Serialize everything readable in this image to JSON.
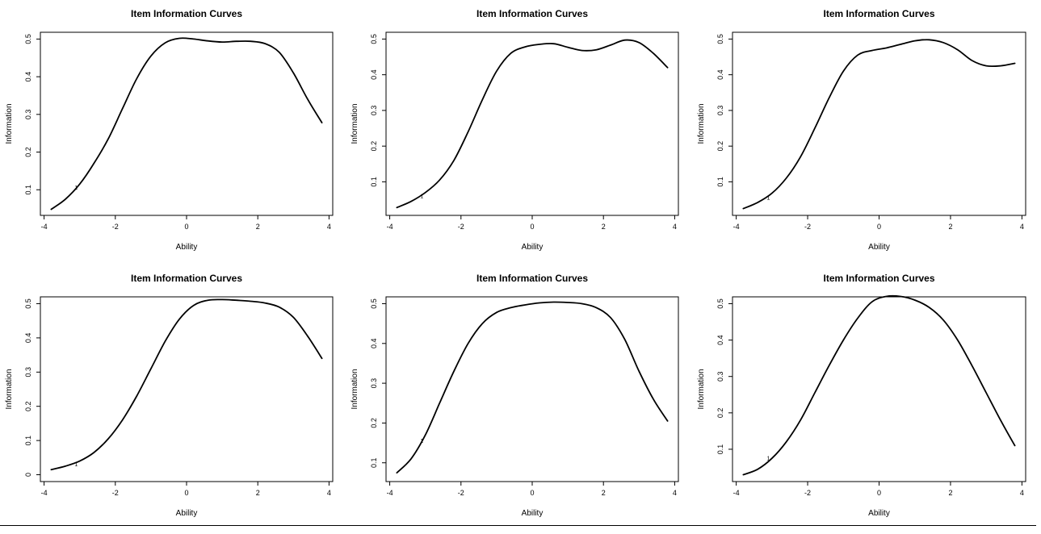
{
  "chart_data": [
    {
      "type": "line",
      "title": "Item Information Curves",
      "xlabel": "Ability",
      "ylabel": "Information",
      "xlim": [
        -3.8,
        3.8
      ],
      "ylim": [
        0.05,
        0.5
      ],
      "xticks": [
        -4,
        -2,
        0,
        2,
        4
      ],
      "yticks": [
        0.1,
        0.2,
        0.3,
        0.4,
        0.5
      ],
      "curve_label": "1",
      "curve_label_at": [
        -3.1,
        0.1
      ],
      "x": [
        -3.8,
        -3.4,
        -3.0,
        -2.6,
        -2.2,
        -1.8,
        -1.4,
        -1.0,
        -0.6,
        -0.2,
        0.2,
        0.6,
        1.0,
        1.4,
        1.8,
        2.2,
        2.6,
        3.0,
        3.4,
        3.8
      ],
      "series": [
        {
          "values": [
            0.048,
            0.075,
            0.115,
            0.17,
            0.235,
            0.315,
            0.395,
            0.455,
            0.49,
            0.502,
            0.5,
            0.495,
            0.492,
            0.494,
            0.494,
            0.488,
            0.465,
            0.41,
            0.34,
            0.278
          ]
        }
      ]
    },
    {
      "type": "line",
      "title": "Item Information Curves",
      "xlabel": "Ability",
      "ylabel": "Information",
      "xlim": [
        -3.8,
        3.8
      ],
      "ylim": [
        0.025,
        0.5
      ],
      "xticks": [
        -4,
        -2,
        0,
        2,
        4
      ],
      "yticks": [
        0.1,
        0.2,
        0.3,
        0.4,
        0.5
      ],
      "curve_label": "1",
      "curve_label_at": [
        -3.1,
        0.055
      ],
      "x": [
        -3.8,
        -3.4,
        -3.0,
        -2.6,
        -2.2,
        -1.8,
        -1.4,
        -1.0,
        -0.6,
        -0.2,
        0.2,
        0.6,
        1.0,
        1.4,
        1.8,
        2.2,
        2.6,
        3.0,
        3.4,
        3.8
      ],
      "series": [
        {
          "values": [
            0.028,
            0.045,
            0.07,
            0.105,
            0.16,
            0.24,
            0.33,
            0.41,
            0.46,
            0.478,
            0.485,
            0.487,
            0.477,
            0.468,
            0.47,
            0.483,
            0.497,
            0.49,
            0.46,
            0.42
          ]
        }
      ]
    },
    {
      "type": "line",
      "title": "Item Information Curves",
      "xlabel": "Ability",
      "ylabel": "Information",
      "xlim": [
        -3.8,
        3.8
      ],
      "ylim": [
        0.025,
        0.5
      ],
      "xticks": [
        -4,
        -2,
        0,
        2,
        4
      ],
      "yticks": [
        0.1,
        0.2,
        0.3,
        0.4,
        0.5
      ],
      "curve_label": "1",
      "curve_label_at": [
        -3.1,
        0.05
      ],
      "x": [
        -3.8,
        -3.4,
        -3.0,
        -2.6,
        -2.2,
        -1.8,
        -1.4,
        -1.0,
        -0.6,
        -0.2,
        0.2,
        0.6,
        1.0,
        1.4,
        1.8,
        2.2,
        2.6,
        3.0,
        3.4,
        3.8
      ],
      "series": [
        {
          "values": [
            0.025,
            0.042,
            0.068,
            0.11,
            0.17,
            0.25,
            0.335,
            0.41,
            0.455,
            0.468,
            0.475,
            0.485,
            0.495,
            0.498,
            0.49,
            0.47,
            0.44,
            0.425,
            0.425,
            0.432
          ]
        }
      ]
    },
    {
      "type": "line",
      "title": "Item Information Curves",
      "xlabel": "Ability",
      "ylabel": "Information",
      "xlim": [
        -3.8,
        3.8
      ],
      "ylim": [
        0.0,
        0.5
      ],
      "xticks": [
        -4,
        -2,
        0,
        2,
        4
      ],
      "yticks": [
        0.0,
        0.1,
        0.2,
        0.3,
        0.4,
        0.5
      ],
      "ytick_labels": [
        "0",
        "0.1",
        "0.2",
        "0.3",
        "0.4",
        "0.5"
      ],
      "curve_label": "1",
      "curve_label_at": [
        -3.1,
        0.025
      ],
      "x": [
        -3.8,
        -3.4,
        -3.0,
        -2.6,
        -2.2,
        -1.8,
        -1.4,
        -1.0,
        -0.6,
        -0.2,
        0.2,
        0.6,
        1.0,
        1.4,
        1.8,
        2.2,
        2.6,
        3.0,
        3.4,
        3.8
      ],
      "series": [
        {
          "values": [
            0.015,
            0.025,
            0.04,
            0.065,
            0.105,
            0.16,
            0.23,
            0.31,
            0.39,
            0.455,
            0.495,
            0.51,
            0.512,
            0.51,
            0.507,
            0.502,
            0.49,
            0.46,
            0.405,
            0.34
          ]
        }
      ]
    },
    {
      "type": "line",
      "title": "Item Information Curves",
      "xlabel": "Ability",
      "ylabel": "Information",
      "xlim": [
        -3.8,
        3.8
      ],
      "ylim": [
        0.07,
        0.5
      ],
      "xticks": [
        -4,
        -2,
        0,
        2,
        4
      ],
      "yticks": [
        0.1,
        0.2,
        0.3,
        0.4,
        0.5
      ],
      "curve_label": "1",
      "curve_label_at": [
        -3.1,
        0.15
      ],
      "x": [
        -3.8,
        -3.4,
        -3.0,
        -2.6,
        -2.2,
        -1.8,
        -1.4,
        -1.0,
        -0.6,
        -0.2,
        0.2,
        0.6,
        1.0,
        1.4,
        1.8,
        2.2,
        2.6,
        3.0,
        3.4,
        3.8
      ],
      "series": [
        {
          "values": [
            0.075,
            0.11,
            0.17,
            0.25,
            0.33,
            0.4,
            0.45,
            0.478,
            0.49,
            0.497,
            0.502,
            0.504,
            0.503,
            0.5,
            0.49,
            0.465,
            0.41,
            0.33,
            0.26,
            0.205
          ]
        }
      ]
    },
    {
      "type": "line",
      "title": "Item Information Curves",
      "xlabel": "Ability",
      "ylabel": "Information",
      "xlim": [
        -3.8,
        3.8
      ],
      "ylim": [
        0.03,
        0.5
      ],
      "xticks": [
        -4,
        -2,
        0,
        2,
        4
      ],
      "yticks": [
        0.1,
        0.2,
        0.3,
        0.4,
        0.5
      ],
      "curve_label": "1",
      "curve_label_at": [
        -3.1,
        0.07
      ],
      "x": [
        -3.8,
        -3.4,
        -3.0,
        -2.6,
        -2.2,
        -1.8,
        -1.4,
        -1.0,
        -0.6,
        -0.2,
        0.2,
        0.6,
        1.0,
        1.4,
        1.8,
        2.2,
        2.6,
        3.0,
        3.4,
        3.8
      ],
      "series": [
        {
          "values": [
            0.03,
            0.045,
            0.075,
            0.12,
            0.18,
            0.255,
            0.33,
            0.4,
            0.46,
            0.505,
            0.52,
            0.52,
            0.51,
            0.49,
            0.455,
            0.4,
            0.33,
            0.255,
            0.18,
            0.11
          ]
        }
      ]
    }
  ]
}
